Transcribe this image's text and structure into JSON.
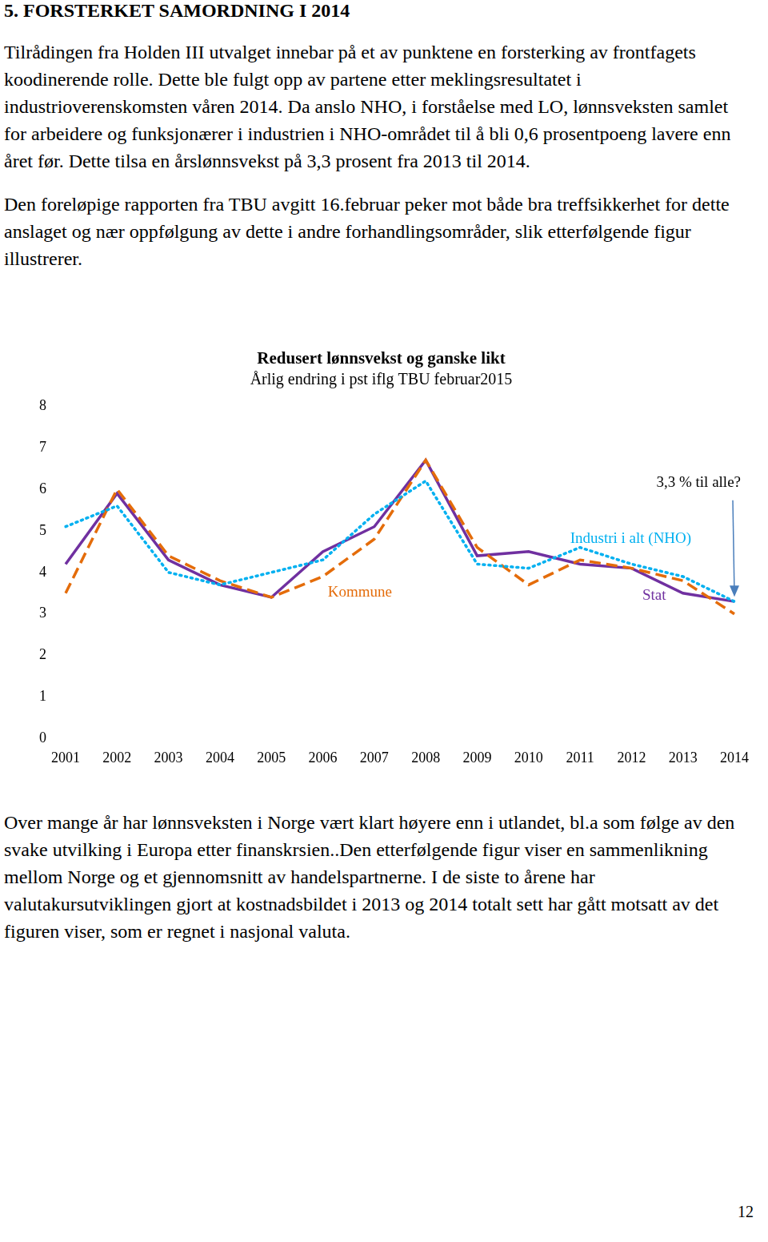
{
  "document": {
    "heading": "5.  FORSTERKET SAMORDNING I 2014",
    "paragraphs_before": [
      "Tilrådingen fra Holden III utvalget innebar på et av punktene en forsterking av frontfagets koodinerende rolle. Dette ble fulgt opp av partene etter meklingsresultatet i industrioverenskomsten våren 2014. Da anslo NHO, i forståelse med LO, lønnsveksten samlet for arbeidere og funksjonærer i industrien i NHO-området til å bli 0,6 prosentpoeng lavere enn året før. Dette tilsa en årslønnsvekst på 3,3 prosent fra 2013 til 2014.",
      "Den foreløpige rapporten fra TBU avgitt 16.februar peker mot både bra treffsikkerhet for dette anslaget og nær oppfølgung av dette i andre forhandlingsområder, slik etterfølgende figur illustrerer."
    ],
    "paragraphs_after": [
      "Over mange år har lønnsveksten i Norge vært klart høyere enn i utlandet, bl.a som følge av den svake utvilking i Europa etter finanskrsien..Den etterfølgende figur viser en sammenlikning mellom Norge og et gjennomsnitt av handelspartnerne. I de siste to årene har valutakursutviklingen gjort at kostnadsbildet i 2013 og 2014 totalt sett har gått motsatt av det figuren viser, som er regnet i nasjonal valuta."
    ],
    "page_number": "12"
  },
  "chart_data": {
    "type": "line",
    "title": "Redusert lønnsvekst og ganske likt",
    "subtitle": "Årlig endring i pst iflg TBU februar2015",
    "categories": [
      "2001",
      "2002",
      "2003",
      "2004",
      "2005",
      "2006",
      "2007",
      "2008",
      "2009",
      "2010",
      "2011",
      "2012",
      "2013",
      "2014"
    ],
    "series": [
      {
        "name": "Industri i alt (NHO)",
        "color": "#00b0f0",
        "line_style": "dotted",
        "values": [
          5.1,
          5.6,
          4.0,
          3.7,
          4.0,
          4.3,
          5.4,
          6.2,
          4.2,
          4.1,
          4.6,
          4.2,
          3.9,
          3.3
        ]
      },
      {
        "name": "Kommune",
        "color": "#e46c0a",
        "line_style": "dashed",
        "values": [
          3.5,
          6.0,
          4.4,
          3.8,
          3.4,
          3.9,
          4.8,
          6.7,
          4.6,
          3.7,
          4.3,
          4.1,
          3.8,
          3.0
        ]
      },
      {
        "name": "Stat",
        "color": "#7030a0",
        "line_style": "solid",
        "values": [
          4.2,
          5.9,
          4.3,
          3.7,
          3.4,
          4.5,
          5.1,
          6.7,
          4.4,
          4.5,
          4.2,
          4.1,
          3.5,
          3.3
        ]
      }
    ],
    "annotations": [
      "3,3 % til alle?"
    ],
    "ylim": [
      0,
      8
    ],
    "yticks": [
      0,
      1,
      2,
      3,
      4,
      5,
      6,
      7,
      8
    ],
    "grid": false
  }
}
